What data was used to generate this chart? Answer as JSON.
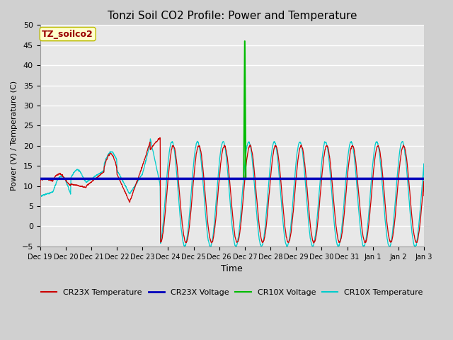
{
  "title": "Tonzi Soil CO2 Profile: Power and Temperature",
  "ylabel": "Power (V) / Temperature (C)",
  "xlabel": "Time",
  "ylim": [
    -5,
    50
  ],
  "yticks": [
    -5,
    0,
    5,
    10,
    15,
    20,
    25,
    30,
    35,
    40,
    45,
    50
  ],
  "annotation_label": "TZ_soilco2",
  "annotation_bg": "#ffffcc",
  "annotation_edge": "#bbbb00",
  "annotation_text_color": "#990000",
  "bg_color": "#e8e8e8",
  "plot_bg": "#e8e8e8",
  "cr23x_temp_color": "#cc0000",
  "cr23x_volt_color": "#0000bb",
  "cr10x_volt_color": "#00bb00",
  "cr10x_temp_color": "#00cccc",
  "cr23x_volt_value": 11.8,
  "cr10x_volt_base": 11.8,
  "cr10x_volt_spike_day": 8.0,
  "cr10x_volt_spike_peak": 46.0,
  "num_days": 15
}
